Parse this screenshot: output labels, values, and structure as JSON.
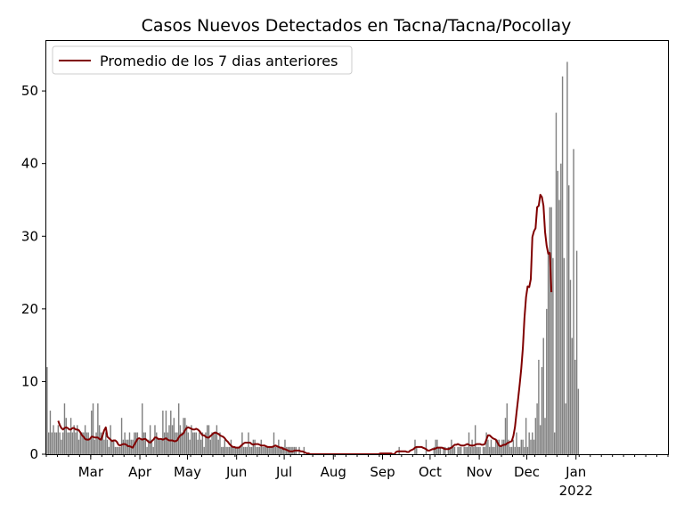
{
  "chart_data": {
    "type": "bar",
    "title": "Casos Nuevos Detectados en Tacna/Tacna/Pocollay",
    "xlabel": "",
    "ylabel": "",
    "x_range": [
      "2021-02-01",
      "2022-02-28"
    ],
    "ylim": [
      0,
      57
    ],
    "y_ticks": [
      0,
      10,
      20,
      30,
      40,
      50
    ],
    "x_ticks": [
      {
        "date": "2021-03-01",
        "label": "Mar"
      },
      {
        "date": "2021-04-01",
        "label": "Apr"
      },
      {
        "date": "2021-05-01",
        "label": "May"
      },
      {
        "date": "2021-06-01",
        "label": "Jun"
      },
      {
        "date": "2021-07-01",
        "label": "Jul"
      },
      {
        "date": "2021-08-01",
        "label": "Aug"
      },
      {
        "date": "2021-09-01",
        "label": "Sep"
      },
      {
        "date": "2021-10-01",
        "label": "Oct"
      },
      {
        "date": "2021-11-01",
        "label": "Nov"
      },
      {
        "date": "2021-12-01",
        "label": "Dec"
      },
      {
        "date": "2022-01-01",
        "label": "Jan",
        "sublabel": "2022"
      }
    ],
    "grid": false,
    "legend_position": "top-left",
    "bar_color": "#808080",
    "line_color": "#800000",
    "series": [
      {
        "type": "bar",
        "values": [
          12,
          3,
          6,
          3,
          4,
          3,
          3,
          4,
          3,
          2,
          3,
          7,
          5,
          3,
          3,
          5,
          3,
          4,
          3,
          4,
          2,
          3,
          3,
          3,
          4,
          3,
          3,
          2,
          6,
          7,
          2,
          3,
          7,
          4,
          3,
          3,
          2,
          3,
          2,
          1,
          4,
          2,
          2,
          1,
          1,
          1,
          1,
          5,
          2,
          3,
          2,
          2,
          3,
          2,
          2,
          3,
          3,
          3,
          2,
          2,
          7,
          3,
          3,
          1,
          2,
          4,
          2,
          1,
          4,
          3,
          2,
          2,
          2,
          6,
          3,
          6,
          3,
          4,
          6,
          4,
          5,
          3,
          3,
          7,
          4,
          3,
          5,
          5,
          4,
          3,
          2,
          4,
          3,
          3,
          3,
          2,
          3,
          2,
          3,
          1,
          3,
          4,
          4,
          2,
          3,
          3,
          3,
          4,
          2,
          3,
          1,
          1,
          2,
          1,
          1,
          1,
          2,
          1,
          1,
          1,
          1,
          1,
          1,
          3,
          1,
          1,
          1,
          3,
          1,
          1,
          2,
          2,
          1,
          1,
          1,
          2,
          1,
          1,
          1,
          1,
          1,
          1,
          1,
          3,
          1,
          1,
          2,
          1,
          1,
          1,
          2,
          1,
          1,
          1,
          1,
          1,
          1,
          1,
          0,
          1,
          0,
          0,
          1,
          0,
          0,
          0,
          0,
          0,
          0,
          0,
          0,
          0,
          0,
          0,
          0,
          0,
          0,
          0,
          0,
          0,
          0,
          0,
          0,
          0,
          0,
          0,
          0,
          0,
          0,
          0,
          0,
          0,
          0,
          0,
          0,
          0,
          0,
          0,
          0,
          0,
          0,
          0,
          0,
          0,
          0,
          0,
          0,
          0,
          0,
          0,
          0,
          0,
          0,
          0,
          0,
          0,
          0,
          0,
          0,
          0,
          0,
          0,
          1,
          0,
          0,
          0,
          0,
          0,
          0,
          0,
          0,
          0,
          2,
          1,
          0,
          0,
          0,
          0,
          0,
          2,
          0,
          0,
          0,
          0,
          1,
          2,
          2,
          1,
          1,
          0,
          1,
          1,
          0,
          1,
          1,
          2,
          1,
          1,
          0,
          1,
          1,
          1,
          0,
          1,
          1,
          1,
          3,
          1,
          2,
          1,
          4,
          1,
          1,
          1,
          0,
          1,
          1,
          3,
          2,
          1,
          2,
          1,
          1,
          2,
          2,
          2,
          1,
          2,
          2,
          5,
          7,
          2,
          1,
          1,
          2,
          1,
          3,
          1,
          1,
          2,
          2,
          1,
          5,
          1,
          3,
          2,
          3,
          2,
          5,
          7,
          13,
          4,
          12,
          16,
          5,
          20,
          28,
          34,
          34,
          27,
          3,
          47,
          39,
          35,
          40,
          52,
          27,
          7,
          54,
          37,
          24,
          16,
          42,
          13,
          28,
          9
        ],
        "start_date": "2021-02-01"
      },
      {
        "type": "line",
        "name": "Promedio de los 7 dias anteriores",
        "values": [
          null,
          null,
          null,
          null,
          null,
          null,
          null,
          4.6,
          4.0,
          3.6,
          3.4,
          3.6,
          3.7,
          3.6,
          3.4,
          3.4,
          3.6,
          3.6,
          3.4,
          3.4,
          3.3,
          3.0,
          2.6,
          2.4,
          2.1,
          2.0,
          2.0,
          2.1,
          2.4,
          2.4,
          2.3,
          2.3,
          2.3,
          2.1,
          2.0,
          2.6,
          3.3,
          3.7,
          2.4,
          2.2,
          2.0,
          1.8,
          1.9,
          1.9,
          1.7,
          1.3,
          1.2,
          1.3,
          1.4,
          1.4,
          1.3,
          1.1,
          1.1,
          1.0,
          0.9,
          1.3,
          1.7,
          2.1,
          2.2,
          2.1,
          2.0,
          2.1,
          2.1,
          1.9,
          1.7,
          1.6,
          1.8,
          2.0,
          2.3,
          2.3,
          2.1,
          2.1,
          2.1,
          2.0,
          2.1,
          2.2,
          2.0,
          1.9,
          1.9,
          1.9,
          1.8,
          1.8,
          1.9,
          2.3,
          2.6,
          2.7,
          2.9,
          3.3,
          3.6,
          3.7,
          3.6,
          3.5,
          3.4,
          3.4,
          3.5,
          3.4,
          3.2,
          2.9,
          2.6,
          2.6,
          2.4,
          2.3,
          2.3,
          2.5,
          2.7,
          2.9,
          3.0,
          2.9,
          2.8,
          2.6,
          2.5,
          2.4,
          2.2,
          1.9,
          1.7,
          1.4,
          1.2,
          1.0,
          1.0,
          0.9,
          0.9,
          0.9,
          1.1,
          1.3,
          1.5,
          1.6,
          1.6,
          1.6,
          1.6,
          1.4,
          1.3,
          1.4,
          1.4,
          1.4,
          1.3,
          1.2,
          1.2,
          1.2,
          1.1,
          1.0,
          1.0,
          1.0,
          1.0,
          1.1,
          1.2,
          1.1,
          1.0,
          0.9,
          0.9,
          0.7,
          0.7,
          0.6,
          0.5,
          0.4,
          0.4,
          0.4,
          0.5,
          0.5,
          0.5,
          0.5,
          0.4,
          0.4,
          0.3,
          0.2,
          0.1,
          0.1,
          0.0,
          0.0,
          0.0,
          0.0,
          0.0,
          0.0,
          0.0,
          0.0,
          0.0,
          0.0,
          0.0,
          0.0,
          0.0,
          0.0,
          0.0,
          0.0,
          0.0,
          0.0,
          0.0,
          0.0,
          0.0,
          0.0,
          0.0,
          0.0,
          0.0,
          0.0,
          0.0,
          0.0,
          0.0,
          0.0,
          0.0,
          0.0,
          0.0,
          0.0,
          0.0,
          0.0,
          0.0,
          0.0,
          0.0,
          0.0,
          0.0,
          0.0,
          0.0,
          0.0,
          0.1,
          0.1,
          0.1,
          0.1,
          0.1,
          0.1,
          0.1,
          0.1,
          0.0,
          0.0,
          0.3,
          0.4,
          0.4,
          0.4,
          0.4,
          0.4,
          0.4,
          0.3,
          0.3,
          0.5,
          0.6,
          0.7,
          0.9,
          1.0,
          1.0,
          1.0,
          1.0,
          0.9,
          0.8,
          0.7,
          0.5,
          0.5,
          0.6,
          0.7,
          0.7,
          0.8,
          0.9,
          0.9,
          0.9,
          0.9,
          0.8,
          0.7,
          0.7,
          0.7,
          0.8,
          0.9,
          1.1,
          1.3,
          1.3,
          1.4,
          1.3,
          1.2,
          1.2,
          1.2,
          1.3,
          1.4,
          1.3,
          1.2,
          1.2,
          1.2,
          1.3,
          1.4,
          1.4,
          1.4,
          1.3,
          1.3,
          1.4,
          2.0,
          2.6,
          2.6,
          2.4,
          2.2,
          2.1,
          2.0,
          1.6,
          1.2,
          1.1,
          1.2,
          1.3,
          1.3,
          1.5,
          1.6,
          1.7,
          1.8,
          2.5,
          3.7,
          5.7,
          7.6,
          9.6,
          11.8,
          14.6,
          18.7,
          21.6,
          23.1,
          23.0,
          24.1,
          29.9,
          30.7,
          31.1,
          34.0,
          34.2,
          35.7,
          35.4,
          34.2,
          30.6,
          28.7,
          27.6,
          27.7,
          22.3
        ],
        "start_date": "2021-02-01"
      }
    ]
  }
}
